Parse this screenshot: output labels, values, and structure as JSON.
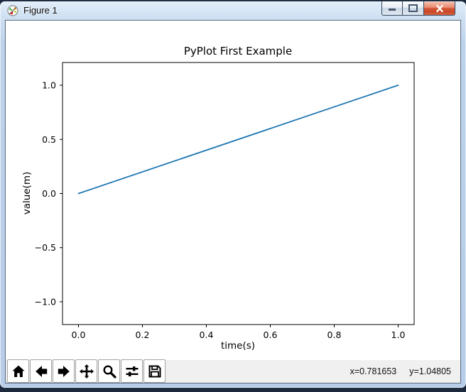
{
  "window": {
    "title": "Figure 1",
    "icon": "matplotlib-logo",
    "controls": [
      {
        "name": "minimize"
      },
      {
        "name": "maximize"
      },
      {
        "name": "close"
      }
    ]
  },
  "toolbar": {
    "buttons": [
      {
        "name": "home",
        "icon": "home-icon"
      },
      {
        "name": "back",
        "icon": "arrow-left-icon"
      },
      {
        "name": "forward",
        "icon": "arrow-right-icon"
      },
      {
        "name": "pan",
        "icon": "move-icon"
      },
      {
        "name": "zoom",
        "icon": "magnifier-icon"
      },
      {
        "name": "configure-subplots",
        "icon": "sliders-icon"
      },
      {
        "name": "save",
        "icon": "floppy-icon"
      }
    ]
  },
  "statusbar": {
    "x_readout": "x=0.781653",
    "y_readout": "y=1.04805"
  },
  "colors": {
    "line": "#1f77b4",
    "close_button": "#d0492a",
    "frame": "#bcd2ea",
    "toolbar_bg": "#f0f0f0"
  },
  "chart_data": {
    "type": "line",
    "title": "PyPlot First Example",
    "xlabel": "time(s)",
    "ylabel": "value(m)",
    "xlim": [
      -0.05,
      1.05
    ],
    "ylim": [
      -1.21,
      1.21
    ],
    "xticks": [
      0.0,
      0.2,
      0.4,
      0.6,
      0.8,
      1.0
    ],
    "xtick_labels": [
      "0.0",
      "0.2",
      "0.4",
      "0.6",
      "0.8",
      "1.0"
    ],
    "yticks": [
      -1.0,
      -0.5,
      0.0,
      0.5,
      1.0
    ],
    "ytick_labels": [
      "−1.0",
      "−0.5",
      "0.0",
      "0.5",
      "1.0"
    ],
    "grid": false,
    "legend": "none",
    "series": [
      {
        "label": "",
        "color": "#1f77b4",
        "x": [
          0.0,
          1.0
        ],
        "y": [
          0.0,
          1.0
        ]
      }
    ]
  }
}
